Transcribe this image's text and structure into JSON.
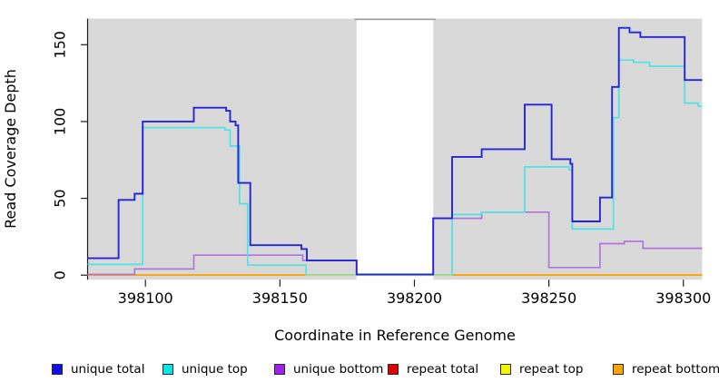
{
  "chart_data": {
    "type": "line",
    "subtype": "step-coverage",
    "title": "",
    "xlabel": "Coordinate in Reference Genome",
    "ylabel": "Read Coverage Depth",
    "x_ticks": [
      398100,
      398150,
      398200,
      398250,
      398300
    ],
    "y_ticks": [
      0,
      50,
      100,
      150
    ],
    "xlim": [
      398078.5,
      398307
    ],
    "ylim": [
      -3,
      167
    ],
    "grid": false,
    "legend_position": "bottom",
    "plot_background": "#d9d9d9",
    "outer_background": "#ffffff",
    "axis_color": "#1a1a1a",
    "gap_region": {
      "from": 398178.5,
      "to": 398207,
      "fill": "#ffffff",
      "top_border": "#9a9a9a"
    },
    "zero_overlap_segment": {
      "from": 398159.5,
      "to": 398214,
      "value": 0,
      "color": "#9edf9b"
    },
    "series": [
      {
        "name": "unique total",
        "color": "#2424d8",
        "legend_color": "#0f0fe6",
        "steps": [
          [
            398078.5,
            11
          ],
          [
            398090,
            49
          ],
          [
            398096,
            53
          ],
          [
            398099,
            100
          ],
          [
            398118,
            109
          ],
          [
            398130,
            107
          ],
          [
            398131.5,
            100
          ],
          [
            398133.5,
            97.5
          ],
          [
            398134.5,
            60
          ],
          [
            398139,
            19.5
          ],
          [
            398158,
            17
          ],
          [
            398160,
            9.5
          ],
          [
            398178.5,
            0.5
          ],
          [
            398207,
            37
          ],
          [
            398214,
            77
          ],
          [
            398225,
            82
          ],
          [
            398241,
            111
          ],
          [
            398251,
            75.5
          ],
          [
            398258,
            72.5
          ],
          [
            398258.7,
            35
          ],
          [
            398269,
            50.5
          ],
          [
            398273.5,
            122.5
          ],
          [
            398276,
            161
          ],
          [
            398280,
            158
          ],
          [
            398284,
            155
          ],
          [
            398300.5,
            127
          ]
        ]
      },
      {
        "name": "unique top",
        "color": "#4ee2e7",
        "legend_color": "#00e8e8",
        "steps": [
          [
            398078.5,
            7
          ],
          [
            398099,
            96
          ],
          [
            398129.5,
            94.5
          ],
          [
            398131.5,
            84
          ],
          [
            398135,
            46.5
          ],
          [
            398138,
            6.5
          ],
          [
            398159.7,
            0
          ],
          [
            398214,
            39.5
          ],
          [
            398225,
            41
          ],
          [
            398241,
            70.5
          ],
          [
            398257.5,
            68.5
          ],
          [
            398258.7,
            30
          ],
          [
            398274,
            102.5
          ],
          [
            398276,
            140
          ],
          [
            398281.5,
            138.5
          ],
          [
            398287.5,
            136
          ],
          [
            398300.5,
            112
          ],
          [
            398305.5,
            110
          ]
        ]
      },
      {
        "name": "unique bottom",
        "color": "#b173de",
        "legend_color": "#a020f0",
        "steps": [
          [
            398078.5,
            0.5
          ],
          [
            398096,
            4
          ],
          [
            398118,
            13
          ],
          [
            398158.5,
            9.5
          ],
          [
            398178.5,
            0
          ],
          [
            398207,
            37
          ],
          [
            398225,
            41
          ],
          [
            398250,
            5
          ],
          [
            398269,
            20.5
          ],
          [
            398278,
            22
          ],
          [
            398285,
            17.5
          ]
        ]
      },
      {
        "name": "repeat total",
        "color": "#e00000",
        "legend_color": "#e00000",
        "steps": [
          [
            398078.5,
            0
          ]
        ]
      },
      {
        "name": "repeat top",
        "color": "#f5f500",
        "legend_color": "#f5f500",
        "steps": [
          [
            398078.5,
            0
          ]
        ]
      },
      {
        "name": "repeat bottom",
        "color": "#ffa500",
        "legend_color": "#ffa500",
        "steps": [
          [
            398078.5,
            0
          ]
        ]
      }
    ]
  }
}
